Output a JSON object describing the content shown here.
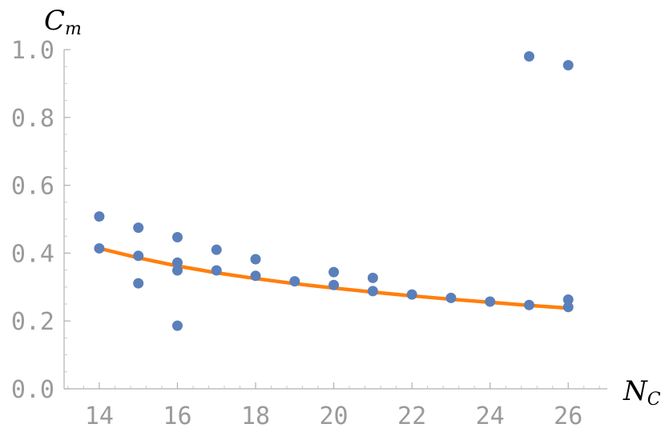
{
  "chart_data": {
    "type": "scatter",
    "xlabel": "N",
    "xlabel_sub": "C",
    "ylabel": "C",
    "ylabel_sub": "m",
    "xlim": [
      13.1,
      27.0
    ],
    "ylim": [
      0.0,
      1.0
    ],
    "xticks": [
      14,
      16,
      18,
      20,
      22,
      24,
      26
    ],
    "xtick_labels": [
      "14",
      "16",
      "18",
      "20",
      "22",
      "24",
      "26"
    ],
    "yticks": [
      0.0,
      0.2,
      0.4,
      0.6,
      0.8,
      1.0
    ],
    "ytick_labels": [
      "0.0",
      "0.2",
      "0.4",
      "0.6",
      "0.8",
      "1.0"
    ],
    "grid": false,
    "series": [
      {
        "kind": "scatter",
        "color": "#5b7fba",
        "points": [
          [
            14,
            0.508
          ],
          [
            14,
            0.414
          ],
          [
            15,
            0.475
          ],
          [
            15,
            0.392
          ],
          [
            15,
            0.311
          ],
          [
            16,
            0.447
          ],
          [
            16,
            0.372
          ],
          [
            16,
            0.349
          ],
          [
            16,
            0.186
          ],
          [
            17,
            0.41
          ],
          [
            17,
            0.349
          ],
          [
            18,
            0.382
          ],
          [
            18,
            0.333
          ],
          [
            19,
            0.317
          ],
          [
            20,
            0.344
          ],
          [
            20,
            0.306
          ],
          [
            21,
            0.327
          ],
          [
            21,
            0.288
          ],
          [
            22,
            0.278
          ],
          [
            23,
            0.268
          ],
          [
            24,
            0.257
          ],
          [
            25,
            0.98
          ],
          [
            25,
            0.247
          ],
          [
            26,
            0.954
          ],
          [
            26,
            0.263
          ],
          [
            26,
            0.241
          ]
        ]
      },
      {
        "kind": "line",
        "color": "#ff7f0e",
        "points": [
          [
            14,
            0.414
          ],
          [
            15,
            0.386
          ],
          [
            16,
            0.362
          ],
          [
            17,
            0.342
          ],
          [
            18,
            0.325
          ],
          [
            19,
            0.31
          ],
          [
            20,
            0.297
          ],
          [
            21,
            0.285
          ],
          [
            22,
            0.274
          ],
          [
            23,
            0.264
          ],
          [
            24,
            0.255
          ],
          [
            25,
            0.246
          ],
          [
            26,
            0.238
          ]
        ]
      }
    ]
  }
}
